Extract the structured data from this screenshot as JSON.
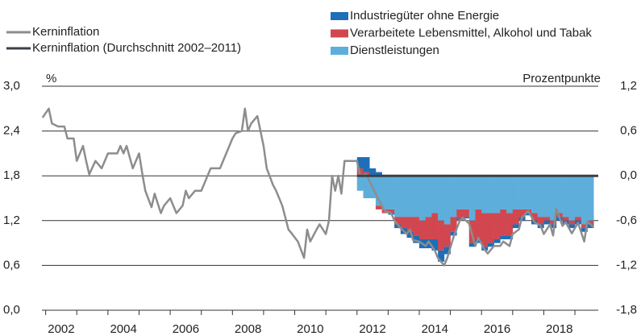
{
  "chart_data": {
    "type": "combo",
    "y_unit_label": "%",
    "y2_unit_label": "Prozentpunkte",
    "xlim": [
      2001.38,
      2019.25
    ],
    "xticks": [
      2002,
      2004,
      2006,
      2008,
      2010,
      2012,
      2014,
      2016,
      2018
    ],
    "ylim": [
      0,
      3.0
    ],
    "yticks": [
      {
        "value": 0,
        "label": "0,0"
      },
      {
        "value": 0.6,
        "label": "0,6"
      },
      {
        "value": 1.2,
        "label": "1,2"
      },
      {
        "value": 1.8,
        "label": "1,8"
      },
      {
        "value": 2.4,
        "label": "2,4"
      },
      {
        "value": 3.0,
        "label": "3,0"
      }
    ],
    "y2lim": [
      -1.8,
      1.2
    ],
    "y2ticks": [
      {
        "value": -1.8,
        "label": "-1,8"
      },
      {
        "value": -1.2,
        "label": "-1,2"
      },
      {
        "value": -0.6,
        "label": "-0,6"
      },
      {
        "value": 0,
        "label": "0,0"
      },
      {
        "value": 0.6,
        "label": "0,6"
      },
      {
        "value": 1.2,
        "label": "1,2"
      }
    ],
    "grid": true,
    "bar_x": [
      2011.6,
      2011.8,
      2012.0,
      2012.2,
      2012.4,
      2012.6,
      2012.8,
      2013.0,
      2013.2,
      2013.4,
      2013.6,
      2013.8,
      2014.0,
      2014.2,
      2014.4,
      2014.6,
      2014.8,
      2015.0,
      2015.2,
      2015.4,
      2015.6,
      2015.8,
      2016.0,
      2016.2,
      2016.4,
      2016.6,
      2016.8,
      2017.0,
      2017.2,
      2017.4,
      2017.6,
      2017.8,
      2018.0,
      2018.2,
      2018.4,
      2018.6,
      2018.8,
      2019.0
    ],
    "bar_series": [
      {
        "name": "Dienstleistungen",
        "color": "#5eaedb",
        "axis": "y2",
        "values": [
          -0.2,
          -0.3,
          -0.3,
          -0.4,
          -0.45,
          -0.45,
          -0.55,
          -0.55,
          -0.55,
          -0.55,
          -0.6,
          -0.55,
          -0.5,
          -0.6,
          -0.65,
          -0.55,
          -0.45,
          -0.45,
          -0.6,
          -0.45,
          -0.5,
          -0.5,
          -0.5,
          -0.45,
          -0.5,
          -0.45,
          -0.45,
          -0.45,
          -0.5,
          -0.55,
          -0.55,
          -0.6,
          -0.5,
          -0.55,
          -0.6,
          -0.55,
          -0.65,
          -0.6
        ]
      },
      {
        "name": "Verarbeitete Lebensmittel, Alkohol und Tabak",
        "color": "#d2474f",
        "axis": "y2",
        "values": [
          0.1,
          0.05,
          0.0,
          -0.05,
          -0.05,
          -0.05,
          -0.1,
          -0.15,
          -0.2,
          -0.25,
          -0.25,
          -0.3,
          -0.35,
          -0.4,
          -0.3,
          -0.2,
          -0.12,
          -0.1,
          -0.3,
          -0.4,
          -0.45,
          -0.4,
          -0.35,
          -0.35,
          -0.3,
          -0.2,
          -0.1,
          -0.05,
          -0.1,
          -0.1,
          -0.05,
          -0.05,
          -0.05,
          -0.05,
          -0.05,
          -0.05,
          -0.05,
          -0.05
        ]
      },
      {
        "name": "Industriegüter ohne Energie",
        "color": "#1c6fb8",
        "axis": "y2",
        "values": [
          0.15,
          0.2,
          0.1,
          0.05,
          0.0,
          -0.02,
          -0.05,
          -0.08,
          -0.08,
          -0.1,
          -0.12,
          -0.12,
          -0.15,
          -0.15,
          -0.1,
          -0.05,
          -0.02,
          -0.02,
          -0.05,
          -0.05,
          -0.05,
          -0.05,
          -0.05,
          -0.05,
          -0.05,
          -0.05,
          -0.05,
          -0.03,
          -0.05,
          -0.05,
          -0.05,
          -0.05,
          -0.05,
          -0.05,
          -0.05,
          -0.05,
          -0.05,
          -0.05
        ]
      }
    ],
    "line_series": [
      {
        "name": "Kerninflation",
        "color": "#8d8d8d",
        "x": [
          2001.4,
          2001.6,
          2001.7,
          2001.9,
          2002.1,
          2002.2,
          2002.4,
          2002.5,
          2002.6,
          2002.7,
          2002.8,
          2002.9,
          2003.1,
          2003.3,
          2003.5,
          2003.8,
          2003.9,
          2004.0,
          2004.1,
          2004.3,
          2004.5,
          2004.6,
          2004.7,
          2004.9,
          2005.0,
          2005.2,
          2005.3,
          2005.5,
          2005.7,
          2005.9,
          2006.0,
          2006.1,
          2006.3,
          2006.5,
          2006.7,
          2006.8,
          2007.1,
          2007.3,
          2007.5,
          2007.6,
          2007.8,
          2007.9,
          2008.0,
          2008.1,
          2008.3,
          2008.5,
          2008.6,
          2008.8,
          2008.9,
          2009.1,
          2009.3,
          2009.4,
          2009.6,
          2009.8,
          2009.9,
          2010.0,
          2010.1,
          2010.2,
          2010.3,
          2010.5,
          2010.6,
          2010.7,
          2010.8,
          2010.9,
          2011.0,
          2011.1,
          2011.5,
          2011.6,
          2011.8,
          2011.9,
          2012.1,
          2012.3,
          2012.4,
          2012.6,
          2012.7,
          2012.9,
          2013.1,
          2013.2,
          2013.3,
          2013.5,
          2013.7,
          2013.8,
          2014.0,
          2014.1,
          2014.3,
          2014.4,
          2014.6,
          2014.8,
          2014.9,
          2015.1,
          2015.3,
          2015.4,
          2015.6,
          2015.7,
          2015.9,
          2016.1,
          2016.2,
          2016.4,
          2016.5,
          2016.7,
          2016.8,
          2017.0,
          2017.2,
          2017.4,
          2017.5,
          2017.7,
          2017.8,
          2017.9,
          2018.1,
          2018.2,
          2018.4,
          2018.6,
          2018.8,
          2018.9,
          2019.1
        ],
        "values": [
          2.58,
          2.7,
          2.5,
          2.46,
          2.46,
          2.3,
          2.3,
          2.0,
          2.1,
          2.2,
          2.0,
          1.82,
          2.0,
          1.9,
          2.1,
          2.1,
          2.2,
          2.1,
          2.2,
          1.9,
          2.1,
          1.84,
          1.6,
          1.38,
          1.56,
          1.3,
          1.4,
          1.5,
          1.3,
          1.4,
          1.6,
          1.5,
          1.6,
          1.6,
          1.8,
          1.9,
          1.9,
          2.1,
          2.3,
          2.37,
          2.4,
          2.7,
          2.4,
          2.5,
          2.6,
          2.2,
          1.9,
          1.68,
          1.6,
          1.4,
          1.08,
          1.03,
          0.92,
          0.7,
          1.08,
          0.92,
          1.0,
          1.08,
          1.15,
          1.02,
          1.2,
          1.8,
          1.6,
          1.8,
          1.56,
          2.0,
          2.0,
          1.8,
          1.82,
          1.73,
          1.56,
          1.4,
          1.33,
          1.3,
          1.2,
          1.1,
          1.02,
          1.08,
          0.94,
          0.92,
          0.86,
          0.92,
          0.8,
          0.7,
          0.6,
          0.7,
          0.98,
          1.2,
          1.24,
          1.16,
          0.86,
          0.97,
          0.81,
          0.76,
          0.86,
          0.86,
          0.92,
          0.86,
          1.02,
          1.08,
          1.24,
          1.33,
          1.18,
          1.13,
          1.02,
          1.15,
          1.0,
          1.36,
          1.13,
          1.18,
          1.03,
          1.17,
          0.92,
          1.19,
          1.11
        ]
      },
      {
        "name": "Kerninflation (Durchschnitt 2002–2011)",
        "color": "#3b4047",
        "x": [
          2011.5,
          2019.25
        ],
        "values": [
          1.8,
          1.8
        ]
      }
    ]
  }
}
